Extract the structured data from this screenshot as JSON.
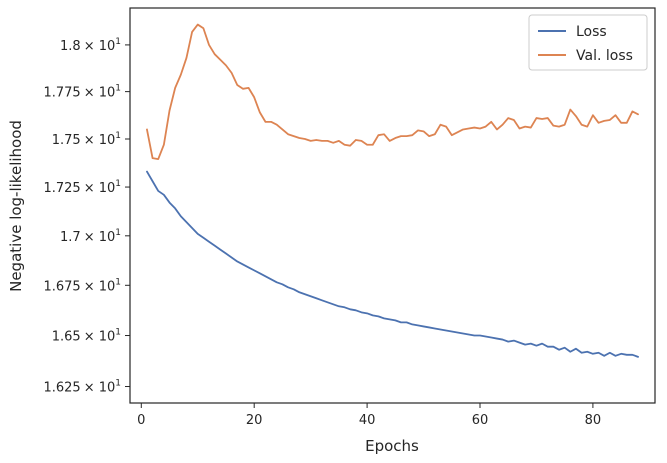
{
  "chart_data": {
    "type": "line",
    "xlabel": "Epochs",
    "ylabel": "Negative log-likelihood",
    "xlim": [
      -2,
      91
    ],
    "ylim": [
      16.17,
      18.2
    ],
    "yscale": "log",
    "grid": false,
    "legend": "top-right",
    "x_ticks": [
      {
        "value": 0,
        "label": "0"
      },
      {
        "value": 20,
        "label": "20"
      },
      {
        "value": 40,
        "label": "40"
      },
      {
        "value": 60,
        "label": "60"
      },
      {
        "value": 80,
        "label": "80"
      }
    ],
    "y_ticks": [
      {
        "value": 16.25,
        "mant": "1.625"
      },
      {
        "value": 16.5,
        "mant": "1.65"
      },
      {
        "value": 16.75,
        "mant": "1.675"
      },
      {
        "value": 17.0,
        "mant": "1.7"
      },
      {
        "value": 17.25,
        "mant": "1.725"
      },
      {
        "value": 17.5,
        "mant": "1.75"
      },
      {
        "value": 17.75,
        "mant": "1.775"
      },
      {
        "value": 18.0,
        "mant": "1.8"
      }
    ],
    "y_tick_suffix": "× 10",
    "y_tick_exponent": "1",
    "series": [
      {
        "name": "Loss",
        "color": "#4c72b0",
        "x": [
          1,
          2,
          3,
          4,
          5,
          6,
          7,
          8,
          9,
          10,
          11,
          12,
          13,
          14,
          15,
          16,
          17,
          18,
          19,
          20,
          21,
          22,
          23,
          24,
          25,
          26,
          27,
          28,
          29,
          30,
          31,
          32,
          33,
          34,
          35,
          36,
          37,
          38,
          39,
          40,
          41,
          42,
          43,
          44,
          45,
          46,
          47,
          48,
          49,
          50,
          51,
          52,
          53,
          54,
          55,
          56,
          57,
          58,
          59,
          60,
          61,
          62,
          63,
          64,
          65,
          66,
          67,
          68,
          69,
          70,
          71,
          72,
          73,
          74,
          75,
          76,
          77,
          78,
          79,
          80,
          81,
          82,
          83,
          84,
          85,
          86,
          87,
          88
        ],
        "values": [
          17.33,
          17.28,
          17.23,
          17.21,
          17.17,
          17.14,
          17.1,
          17.07,
          17.04,
          17.01,
          16.99,
          16.97,
          16.95,
          16.93,
          16.91,
          16.89,
          16.87,
          16.855,
          16.84,
          16.825,
          16.81,
          16.795,
          16.78,
          16.765,
          16.755,
          16.74,
          16.73,
          16.715,
          16.705,
          16.695,
          16.685,
          16.675,
          16.665,
          16.655,
          16.645,
          16.64,
          16.63,
          16.625,
          16.615,
          16.61,
          16.6,
          16.595,
          16.585,
          16.58,
          16.575,
          16.565,
          16.565,
          16.555,
          16.55,
          16.545,
          16.54,
          16.535,
          16.53,
          16.525,
          16.52,
          16.515,
          16.51,
          16.505,
          16.5,
          16.5,
          16.495,
          16.49,
          16.485,
          16.48,
          16.47,
          16.475,
          16.465,
          16.455,
          16.46,
          16.45,
          16.46,
          16.445,
          16.445,
          16.43,
          16.44,
          16.42,
          16.435,
          16.415,
          16.42,
          16.41,
          16.415,
          16.4,
          16.415,
          16.4,
          16.41,
          16.405,
          16.405,
          16.395
        ]
      },
      {
        "name": "Val. loss",
        "color": "#dd8452",
        "x": [
          1,
          2,
          3,
          4,
          5,
          6,
          7,
          8,
          9,
          10,
          11,
          12,
          13,
          14,
          15,
          16,
          17,
          18,
          19,
          20,
          21,
          22,
          23,
          24,
          25,
          26,
          27,
          28,
          29,
          30,
          31,
          32,
          33,
          34,
          35,
          36,
          37,
          38,
          39,
          40,
          41,
          42,
          43,
          44,
          45,
          46,
          47,
          48,
          49,
          50,
          51,
          52,
          53,
          54,
          55,
          56,
          57,
          58,
          59,
          60,
          61,
          62,
          63,
          64,
          65,
          66,
          67,
          68,
          69,
          70,
          71,
          72,
          73,
          74,
          75,
          76,
          77,
          78,
          79,
          80,
          81,
          82,
          83,
          84,
          85,
          86,
          87,
          88
        ],
        "values": [
          17.55,
          17.4,
          17.395,
          17.47,
          17.65,
          17.77,
          17.84,
          17.93,
          18.07,
          18.11,
          18.09,
          18.0,
          17.95,
          17.92,
          17.89,
          17.85,
          17.785,
          17.765,
          17.77,
          17.72,
          17.64,
          17.59,
          17.59,
          17.575,
          17.55,
          17.525,
          17.515,
          17.505,
          17.5,
          17.49,
          17.495,
          17.49,
          17.49,
          17.48,
          17.49,
          17.47,
          17.465,
          17.495,
          17.49,
          17.47,
          17.47,
          17.52,
          17.525,
          17.49,
          17.505,
          17.515,
          17.515,
          17.52,
          17.545,
          17.54,
          17.515,
          17.525,
          17.575,
          17.565,
          17.52,
          17.535,
          17.55,
          17.555,
          17.56,
          17.555,
          17.565,
          17.59,
          17.55,
          17.575,
          17.61,
          17.6,
          17.555,
          17.565,
          17.56,
          17.61,
          17.605,
          17.61,
          17.57,
          17.565,
          17.575,
          17.655,
          17.62,
          17.575,
          17.565,
          17.625,
          17.585,
          17.595,
          17.6,
          17.625,
          17.585,
          17.585,
          17.645,
          17.63
        ]
      }
    ]
  }
}
